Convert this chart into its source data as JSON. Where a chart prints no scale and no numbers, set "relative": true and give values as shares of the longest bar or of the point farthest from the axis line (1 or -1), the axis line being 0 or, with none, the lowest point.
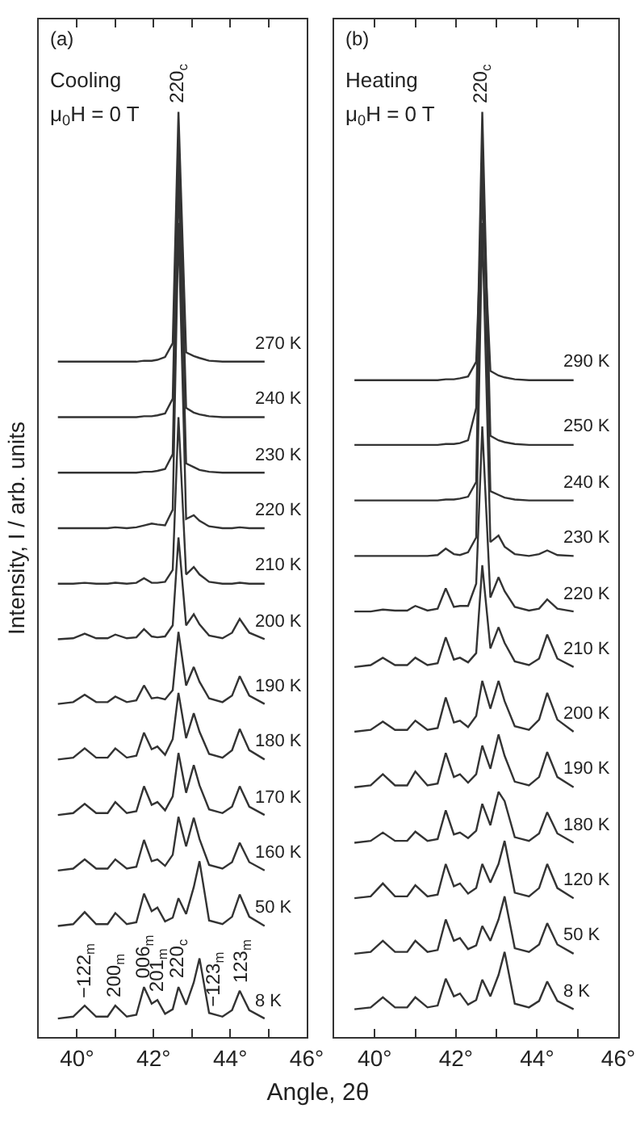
{
  "chart_data": [
    {
      "type": "line",
      "relative": true,
      "legend": false,
      "marker": "none",
      "ylabel": "Intensity, I / arb. units",
      "xlabel": "Angle, 2θ",
      "xlim": [
        39,
        46
      ],
      "xticks": [
        {
          "value": 40,
          "label": "40°"
        },
        {
          "value": 41,
          "label": null
        },
        {
          "value": 42,
          "label": "42°"
        },
        {
          "value": 43,
          "label": null
        },
        {
          "value": 44,
          "label": "44°"
        },
        {
          "value": 45,
          "label": null
        },
        {
          "value": 46,
          "label": "46°"
        }
      ],
      "x": [
        39.5,
        39.9,
        40.2,
        40.5,
        40.8,
        41.0,
        41.3,
        41.55,
        41.75,
        41.95,
        42.1,
        42.3,
        42.5,
        42.65,
        42.85,
        43.05,
        43.2,
        43.45,
        43.8,
        44.05,
        44.25,
        44.5,
        44.9
      ],
      "annotations": [
        "(a)",
        "Cooling",
        "μ$_{0}$H = 0 T",
        {
          "text": "220$_{c}$",
          "x": 42.65,
          "y": 1.0
        },
        {
          "text": "−122$_{m}$",
          "x": 40.2,
          "y": 0.034
        },
        {
          "text": "200$_{m}$",
          "x": 41.0,
          "y": 0.034
        },
        {
          "text": "006$_{m}$",
          "x": 41.75,
          "y": 0.054
        },
        {
          "text": "201$_{m}$",
          "x": 42.1,
          "y": 0.04
        },
        {
          "text": "220$_{c}$",
          "x": 42.65,
          "y": 0.054
        },
        {
          "text": "−123$_{m}$",
          "x": 43.6,
          "y": 0.024
        },
        {
          "text": "123$_{m}$",
          "x": 44.3,
          "y": 0.05
        }
      ],
      "series": [
        {
          "name": "270 K",
          "color": "#333333",
          "values": [
            0.73,
            0.73,
            0.73,
            0.73,
            0.73,
            0.73,
            0.73,
            0.73,
            0.731,
            0.731,
            0.732,
            0.735,
            0.75,
            1.0,
            0.74,
            0.736,
            0.734,
            0.731,
            0.73,
            0.73,
            0.73,
            0.73,
            0.73
          ]
        },
        {
          "name": "240 K",
          "color": "#333333",
          "values": [
            0.67,
            0.67,
            0.67,
            0.67,
            0.67,
            0.67,
            0.67,
            0.67,
            0.671,
            0.671,
            0.672,
            0.674,
            0.69,
            0.97,
            0.68,
            0.675,
            0.673,
            0.671,
            0.67,
            0.67,
            0.67,
            0.67,
            0.67
          ]
        },
        {
          "name": "230 K",
          "color": "#333333",
          "values": [
            0.61,
            0.61,
            0.61,
            0.61,
            0.61,
            0.61,
            0.61,
            0.61,
            0.611,
            0.611,
            0.612,
            0.614,
            0.63,
            0.93,
            0.62,
            0.616,
            0.613,
            0.611,
            0.61,
            0.61,
            0.61,
            0.61,
            0.61
          ]
        },
        {
          "name": "220 K",
          "color": "#333333",
          "values": [
            0.55,
            0.55,
            0.55,
            0.55,
            0.55,
            0.551,
            0.55,
            0.551,
            0.553,
            0.555,
            0.554,
            0.553,
            0.57,
            0.88,
            0.56,
            0.564,
            0.558,
            0.552,
            0.55,
            0.55,
            0.551,
            0.55,
            0.55
          ]
        },
        {
          "name": "210 K",
          "color": "#333333",
          "values": [
            0.49,
            0.49,
            0.491,
            0.49,
            0.49,
            0.491,
            0.49,
            0.491,
            0.496,
            0.491,
            0.491,
            0.492,
            0.505,
            0.67,
            0.5,
            0.508,
            0.5,
            0.492,
            0.49,
            0.49,
            0.491,
            0.49,
            0.49
          ]
        },
        {
          "name": "200 K",
          "color": "#333333",
          "values": [
            0.43,
            0.431,
            0.436,
            0.431,
            0.431,
            0.435,
            0.431,
            0.432,
            0.441,
            0.433,
            0.432,
            0.433,
            0.445,
            0.54,
            0.445,
            0.457,
            0.446,
            0.434,
            0.431,
            0.437,
            0.452,
            0.437,
            0.43
          ]
        },
        {
          "name": "190 K",
          "color": "#333333",
          "values": [
            0.36,
            0.362,
            0.37,
            0.362,
            0.362,
            0.368,
            0.362,
            0.364,
            0.38,
            0.366,
            0.367,
            0.365,
            0.375,
            0.438,
            0.38,
            0.4,
            0.384,
            0.366,
            0.362,
            0.369,
            0.39,
            0.369,
            0.36
          ]
        },
        {
          "name": "180 K",
          "color": "#333333",
          "values": [
            0.3,
            0.302,
            0.312,
            0.302,
            0.302,
            0.312,
            0.302,
            0.304,
            0.329,
            0.311,
            0.314,
            0.305,
            0.322,
            0.372,
            0.323,
            0.35,
            0.33,
            0.306,
            0.302,
            0.31,
            0.333,
            0.31,
            0.3
          ]
        },
        {
          "name": "170 K",
          "color": "#333333",
          "values": [
            0.24,
            0.242,
            0.252,
            0.242,
            0.242,
            0.254,
            0.242,
            0.244,
            0.271,
            0.251,
            0.254,
            0.245,
            0.26,
            0.307,
            0.264,
            0.294,
            0.272,
            0.246,
            0.242,
            0.249,
            0.271,
            0.249,
            0.24
          ]
        },
        {
          "name": "160 K",
          "color": "#333333",
          "values": [
            0.18,
            0.182,
            0.192,
            0.182,
            0.182,
            0.192,
            0.182,
            0.184,
            0.213,
            0.19,
            0.192,
            0.185,
            0.197,
            0.238,
            0.206,
            0.237,
            0.214,
            0.186,
            0.182,
            0.189,
            0.21,
            0.189,
            0.18
          ]
        },
        {
          "name": "50 K",
          "color": "#333333",
          "values": [
            0.12,
            0.122,
            0.135,
            0.122,
            0.122,
            0.134,
            0.122,
            0.124,
            0.155,
            0.136,
            0.14,
            0.125,
            0.129,
            0.15,
            0.133,
            0.162,
            0.19,
            0.126,
            0.122,
            0.13,
            0.154,
            0.13,
            0.12
          ]
        },
        {
          "name": "8 K",
          "color": "#333333",
          "values": [
            0.02,
            0.022,
            0.034,
            0.022,
            0.022,
            0.034,
            0.022,
            0.024,
            0.054,
            0.036,
            0.04,
            0.025,
            0.03,
            0.054,
            0.035,
            0.059,
            0.085,
            0.026,
            0.022,
            0.029,
            0.05,
            0.029,
            0.02
          ]
        }
      ]
    },
    {
      "type": "line",
      "relative": true,
      "legend": false,
      "marker": "none",
      "xlim": [
        39,
        46
      ],
      "xticks": [
        {
          "value": 40,
          "label": "40°"
        },
        {
          "value": 41,
          "label": null
        },
        {
          "value": 42,
          "label": "42°"
        },
        {
          "value": 43,
          "label": null
        },
        {
          "value": 44,
          "label": "44°"
        },
        {
          "value": 45,
          "label": null
        },
        {
          "value": 46,
          "label": "46°"
        }
      ],
      "x": [
        39.5,
        39.9,
        40.2,
        40.5,
        40.8,
        41.0,
        41.3,
        41.55,
        41.75,
        41.95,
        42.1,
        42.3,
        42.5,
        42.65,
        42.85,
        43.05,
        43.2,
        43.45,
        43.8,
        44.05,
        44.25,
        44.5,
        44.9
      ],
      "annotations": [
        "(b)",
        "Heating",
        "μ$_{0}$H = 0 T",
        {
          "text": "220$_{c}$",
          "x": 42.65,
          "y": 1.0
        }
      ],
      "series": [
        {
          "name": "290 K",
          "color": "#333333",
          "values": [
            0.71,
            0.71,
            0.71,
            0.71,
            0.71,
            0.71,
            0.71,
            0.71,
            0.711,
            0.711,
            0.712,
            0.714,
            0.73,
            0.91,
            0.72,
            0.715,
            0.713,
            0.711,
            0.71,
            0.71,
            0.71,
            0.71,
            0.71
          ]
        },
        {
          "name": "250 K",
          "color": "#333333",
          "values": [
            0.64,
            0.64,
            0.64,
            0.64,
            0.64,
            0.64,
            0.64,
            0.64,
            0.641,
            0.641,
            0.642,
            0.645,
            0.68,
            1.0,
            0.65,
            0.645,
            0.643,
            0.641,
            0.64,
            0.64,
            0.64,
            0.64,
            0.64
          ]
        },
        {
          "name": "240 K",
          "color": "#333333",
          "values": [
            0.58,
            0.58,
            0.58,
            0.58,
            0.58,
            0.58,
            0.58,
            0.58,
            0.581,
            0.581,
            0.582,
            0.584,
            0.6,
            0.96,
            0.59,
            0.586,
            0.583,
            0.581,
            0.58,
            0.58,
            0.58,
            0.58,
            0.58
          ]
        },
        {
          "name": "230 K",
          "color": "#333333",
          "values": [
            0.52,
            0.52,
            0.52,
            0.52,
            0.52,
            0.52,
            0.52,
            0.521,
            0.528,
            0.522,
            0.521,
            0.524,
            0.54,
            0.88,
            0.535,
            0.542,
            0.53,
            0.522,
            0.52,
            0.522,
            0.526,
            0.521,
            0.52
          ]
        },
        {
          "name": "220 K",
          "color": "#333333",
          "values": [
            0.46,
            0.46,
            0.462,
            0.461,
            0.461,
            0.466,
            0.461,
            0.463,
            0.485,
            0.465,
            0.466,
            0.466,
            0.49,
            0.66,
            0.475,
            0.497,
            0.482,
            0.465,
            0.461,
            0.463,
            0.473,
            0.463,
            0.46
          ]
        },
        {
          "name": "210 K",
          "color": "#333333",
          "values": [
            0.4,
            0.402,
            0.41,
            0.402,
            0.402,
            0.41,
            0.402,
            0.404,
            0.432,
            0.408,
            0.41,
            0.405,
            0.415,
            0.51,
            0.42,
            0.443,
            0.426,
            0.406,
            0.402,
            0.409,
            0.435,
            0.409,
            0.4
          ]
        },
        {
          "name": "200 K",
          "color": "#333333",
          "values": [
            0.33,
            0.332,
            0.341,
            0.332,
            0.332,
            0.342,
            0.332,
            0.334,
            0.367,
            0.34,
            0.342,
            0.335,
            0.347,
            0.385,
            0.355,
            0.385,
            0.363,
            0.336,
            0.332,
            0.343,
            0.372,
            0.343,
            0.33
          ]
        },
        {
          "name": "190 K",
          "color": "#333333",
          "values": [
            0.27,
            0.272,
            0.284,
            0.272,
            0.272,
            0.287,
            0.272,
            0.274,
            0.307,
            0.281,
            0.284,
            0.275,
            0.284,
            0.315,
            0.29,
            0.327,
            0.304,
            0.276,
            0.272,
            0.281,
            0.308,
            0.281,
            0.27
          ]
        },
        {
          "name": "180 K",
          "color": "#333333",
          "values": [
            0.21,
            0.212,
            0.221,
            0.212,
            0.212,
            0.222,
            0.212,
            0.214,
            0.245,
            0.219,
            0.221,
            0.215,
            0.223,
            0.252,
            0.229,
            0.265,
            0.255,
            0.216,
            0.212,
            0.22,
            0.243,
            0.22,
            0.21
          ]
        },
        {
          "name": "120 K",
          "color": "#333333",
          "values": [
            0.15,
            0.152,
            0.166,
            0.152,
            0.152,
            0.164,
            0.152,
            0.154,
            0.187,
            0.163,
            0.166,
            0.155,
            0.161,
            0.187,
            0.167,
            0.187,
            0.212,
            0.156,
            0.152,
            0.161,
            0.187,
            0.161,
            0.15
          ]
        },
        {
          "name": "50 K",
          "color": "#333333",
          "values": [
            0.09,
            0.092,
            0.104,
            0.092,
            0.092,
            0.104,
            0.092,
            0.094,
            0.127,
            0.104,
            0.107,
            0.095,
            0.099,
            0.12,
            0.104,
            0.127,
            0.152,
            0.096,
            0.092,
            0.1,
            0.123,
            0.1,
            0.09
          ]
        },
        {
          "name": "8 K",
          "color": "#333333",
          "values": [
            0.03,
            0.032,
            0.043,
            0.032,
            0.032,
            0.043,
            0.032,
            0.034,
            0.063,
            0.044,
            0.047,
            0.035,
            0.04,
            0.062,
            0.044,
            0.067,
            0.092,
            0.036,
            0.032,
            0.039,
            0.06,
            0.039,
            0.03
          ]
        }
      ]
    }
  ]
}
